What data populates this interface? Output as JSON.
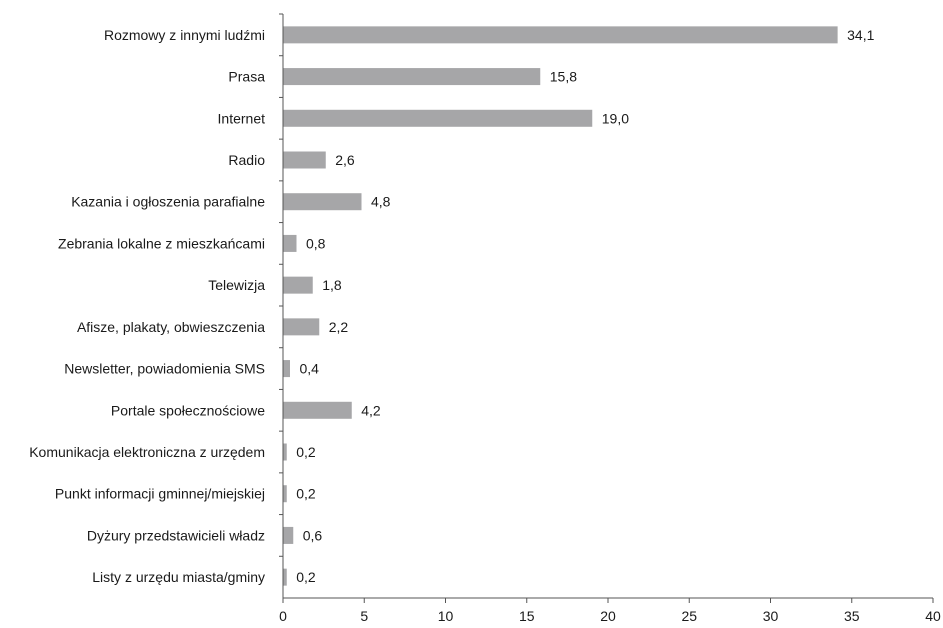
{
  "chart_data": {
    "type": "bar",
    "orientation": "horizontal",
    "categories": [
      "Rozmowy z innymi ludźmi",
      "Prasa",
      "Internet",
      "Radio",
      "Kazania i ogłoszenia parafialne",
      "Zebrania lokalne z mieszkańcami",
      "Telewizja",
      "Afisze, plakaty, obwieszczenia",
      "Newsletter, powiadomienia SMS",
      "Portale społecznościowe",
      "Komunikacja elektroniczna z urzędem",
      "Punkt informacji gminnej/miejskiej",
      "Dyżury przedstawicieli władz",
      "Listy z urzędu miasta/gminy"
    ],
    "values": [
      34.1,
      15.8,
      19.0,
      2.6,
      4.8,
      0.8,
      1.8,
      2.2,
      0.4,
      4.2,
      0.2,
      0.2,
      0.6,
      0.2
    ],
    "value_labels": [
      "34,1",
      "15,8",
      "19,0",
      "2,6",
      "4,8",
      "0,8",
      "1,8",
      "2,2",
      "0,4",
      "4,2",
      "0,2",
      "0,2",
      "0,6",
      "0,2"
    ],
    "xlim": [
      0,
      40
    ],
    "x_ticks": [
      0,
      5,
      10,
      15,
      20,
      25,
      30,
      35,
      40
    ],
    "x_tick_labels": [
      "0",
      "5",
      "10",
      "15",
      "20",
      "25",
      "30",
      "35",
      "40"
    ],
    "title": "",
    "xlabel": "",
    "ylabel": "",
    "grid": false,
    "bar_color": "#a6a6a8",
    "axis_color": "#555555"
  }
}
